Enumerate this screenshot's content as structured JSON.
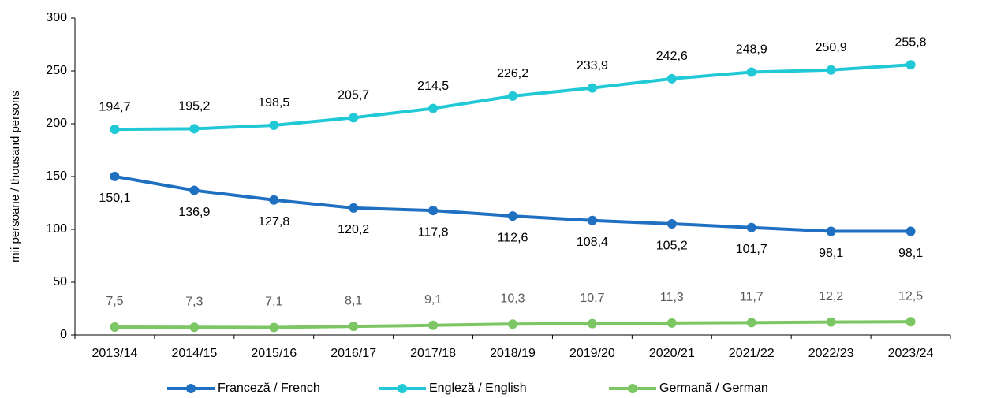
{
  "chart_data": {
    "type": "line",
    "ylabel": "mii persoane / thousand persons",
    "categories": [
      "2013/14",
      "2014/15",
      "2015/16",
      "2016/17",
      "2017/18",
      "2018/19",
      "2019/20",
      "2020/21",
      "2021/22",
      "2022/23",
      "2023/24"
    ],
    "series": [
      {
        "name": "Franceză / French",
        "color": "#1f70c1",
        "values": [
          150.1,
          136.9,
          127.8,
          120.2,
          117.8,
          112.6,
          108.4,
          105.2,
          101.7,
          98.1,
          98.1
        ],
        "value_labels": [
          "150,1",
          "136,9",
          "127,8",
          "120,2",
          "117,8",
          "112,6",
          "108,4",
          "105,2",
          "101,7",
          "98,1",
          "98,1"
        ]
      },
      {
        "name": "Engleză / English",
        "color": "#21c9d6",
        "values": [
          194.7,
          195.2,
          198.5,
          205.7,
          214.5,
          226.2,
          233.9,
          242.6,
          248.9,
          250.9,
          255.8
        ],
        "value_labels": [
          "194,7",
          "195,2",
          "198,5",
          "205,7",
          "214,5",
          "226,2",
          "233,9",
          "242,6",
          "248,9",
          "250,9",
          "255,8"
        ]
      },
      {
        "name": "Germană / German",
        "color": "#7cc764",
        "values": [
          7.5,
          7.3,
          7.1,
          8.1,
          9.1,
          10.3,
          10.7,
          11.3,
          11.7,
          12.2,
          12.5
        ],
        "value_labels": [
          "7,5",
          "7,3",
          "7,1",
          "8,1",
          "9,1",
          "10,3",
          "10,7",
          "11,3",
          "11,7",
          "12,2",
          "12,5"
        ]
      }
    ],
    "ylim": [
      0,
      300
    ],
    "yticks": [
      0,
      50,
      100,
      150,
      200,
      250,
      300
    ],
    "legend": "bottom"
  }
}
